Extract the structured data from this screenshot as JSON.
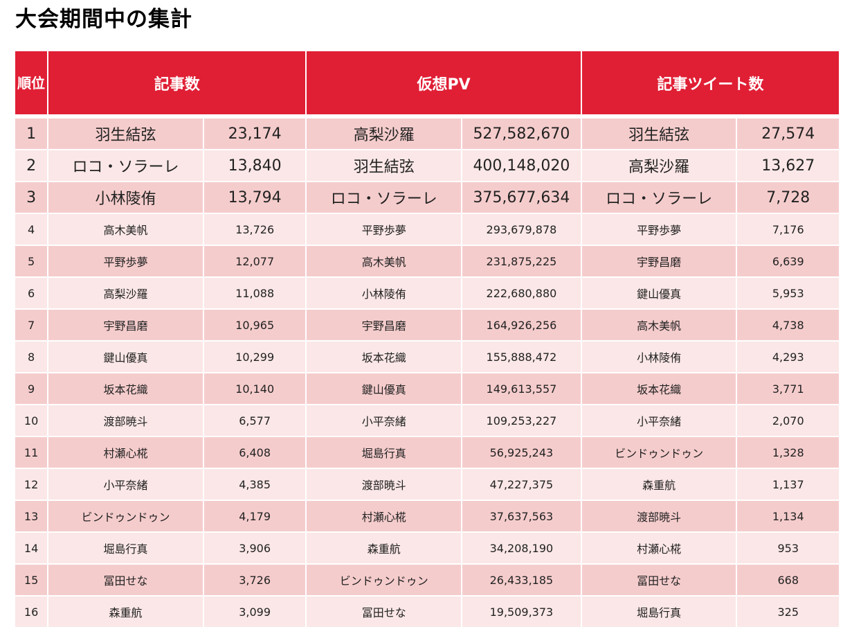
{
  "title": "大会期間中の集計",
  "headers": {
    "rank": "順位",
    "articles": "記事数",
    "pv": "仮想PV",
    "tweets": "記事ツイート数"
  },
  "rows": [
    {
      "rank": "1",
      "a_name": "羽生結弦",
      "a_val": "23,174",
      "p_name": "高梨沙羅",
      "p_val": "527,582,670",
      "t_name": "羽生結弦",
      "t_val": "27,574"
    },
    {
      "rank": "2",
      "a_name": "ロコ・ソラーレ",
      "a_val": "13,840",
      "p_name": "羽生結弦",
      "p_val": "400,148,020",
      "t_name": "高梨沙羅",
      "t_val": "13,627"
    },
    {
      "rank": "3",
      "a_name": "小林陵侑",
      "a_val": "13,794",
      "p_name": "ロコ・ソラーレ",
      "p_val": "375,677,634",
      "t_name": "ロコ・ソラーレ",
      "t_val": "7,728"
    },
    {
      "rank": "4",
      "a_name": "高木美帆",
      "a_val": "13,726",
      "p_name": "平野歩夢",
      "p_val": "293,679,878",
      "t_name": "平野歩夢",
      "t_val": "7,176"
    },
    {
      "rank": "5",
      "a_name": "平野歩夢",
      "a_val": "12,077",
      "p_name": "高木美帆",
      "p_val": "231,875,225",
      "t_name": "宇野昌磨",
      "t_val": "6,639"
    },
    {
      "rank": "6",
      "a_name": "高梨沙羅",
      "a_val": "11,088",
      "p_name": "小林陵侑",
      "p_val": "222,680,880",
      "t_name": "鍵山優真",
      "t_val": "5,953"
    },
    {
      "rank": "7",
      "a_name": "宇野昌磨",
      "a_val": "10,965",
      "p_name": "宇野昌磨",
      "p_val": "164,926,256",
      "t_name": "高木美帆",
      "t_val": "4,738"
    },
    {
      "rank": "8",
      "a_name": "鍵山優真",
      "a_val": "10,299",
      "p_name": "坂本花織",
      "p_val": "155,888,472",
      "t_name": "小林陵侑",
      "t_val": "4,293"
    },
    {
      "rank": "9",
      "a_name": "坂本花織",
      "a_val": "10,140",
      "p_name": "鍵山優真",
      "p_val": "149,613,557",
      "t_name": "坂本花織",
      "t_val": "3,771"
    },
    {
      "rank": "10",
      "a_name": "渡部暁斗",
      "a_val": "6,577",
      "p_name": "小平奈緒",
      "p_val": "109,253,227",
      "t_name": "小平奈緒",
      "t_val": "2,070"
    },
    {
      "rank": "11",
      "a_name": "村瀬心椛",
      "a_val": "6,408",
      "p_name": "堀島行真",
      "p_val": "56,925,243",
      "t_name": "ビンドゥンドゥン",
      "t_val": "1,328"
    },
    {
      "rank": "12",
      "a_name": "小平奈緒",
      "a_val": "4,385",
      "p_name": "渡部暁斗",
      "p_val": "47,227,375",
      "t_name": "森重航",
      "t_val": "1,137"
    },
    {
      "rank": "13",
      "a_name": "ビンドゥンドゥン",
      "a_val": "4,179",
      "p_name": "村瀬心椛",
      "p_val": "37,637,563",
      "t_name": "渡部暁斗",
      "t_val": "1,134"
    },
    {
      "rank": "14",
      "a_name": "堀島行真",
      "a_val": "3,906",
      "p_name": "森重航",
      "p_val": "34,208,190",
      "t_name": "村瀬心椛",
      "t_val": "953"
    },
    {
      "rank": "15",
      "a_name": "冨田せな",
      "a_val": "3,726",
      "p_name": "ビンドゥンドゥン",
      "p_val": "26,433,185",
      "t_name": "冨田せな",
      "t_val": "668"
    },
    {
      "rank": "16",
      "a_name": "森重航",
      "a_val": "3,099",
      "p_name": "冨田せな",
      "p_val": "19,509,373",
      "t_name": "堀島行真",
      "t_val": "325"
    }
  ]
}
